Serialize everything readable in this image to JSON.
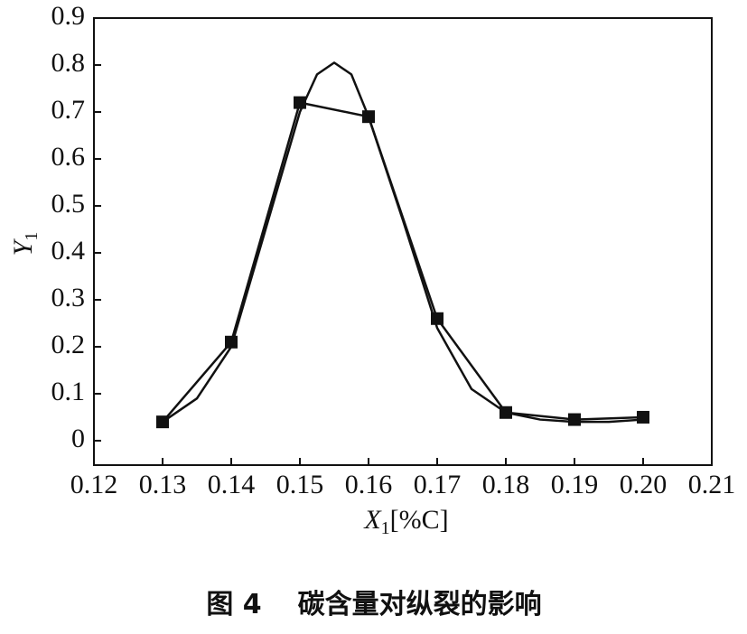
{
  "chart_data": {
    "type": "line",
    "caption": {
      "label": "图 4",
      "text": "碳含量对纵裂的影响"
    },
    "xlabel": [
      "X",
      "1",
      "[%C]"
    ],
    "ylabel": [
      "Y",
      "1"
    ],
    "xlim": [
      0.12,
      0.21
    ],
    "xticks": [
      0.12,
      0.13,
      0.14,
      0.15,
      0.16,
      0.17,
      0.18,
      0.19,
      {
        "value": 0.2,
        "label": "0.20"
      },
      0.21
    ],
    "ylim": [
      -0.052,
      0.9
    ],
    "yticks": [
      0,
      0.1,
      0.2,
      0.3,
      0.4,
      0.5,
      0.6,
      0.7,
      0.8,
      0.9
    ],
    "series": [
      {
        "color": "#111111",
        "marker": "square",
        "x": [
          0.13,
          0.14,
          0.15,
          0.16,
          0.17,
          0.18,
          0.19,
          0.2
        ],
        "values": [
          0.04,
          0.21,
          0.72,
          0.69,
          0.26,
          0.06,
          0.045,
          0.05
        ]
      },
      {
        "color": "#111111",
        "marker": "none",
        "x": [
          0.13,
          0.135,
          0.14,
          0.145,
          0.15,
          0.1525,
          0.155,
          0.1575,
          0.16,
          0.165,
          0.17,
          0.175,
          0.18,
          0.185,
          0.19,
          0.195,
          0.2
        ],
        "values": [
          0.04,
          0.09,
          0.2,
          0.45,
          0.7,
          0.78,
          0.805,
          0.78,
          0.69,
          0.47,
          0.24,
          0.11,
          0.06,
          0.045,
          0.04,
          0.04,
          0.045
        ]
      }
    ]
  }
}
